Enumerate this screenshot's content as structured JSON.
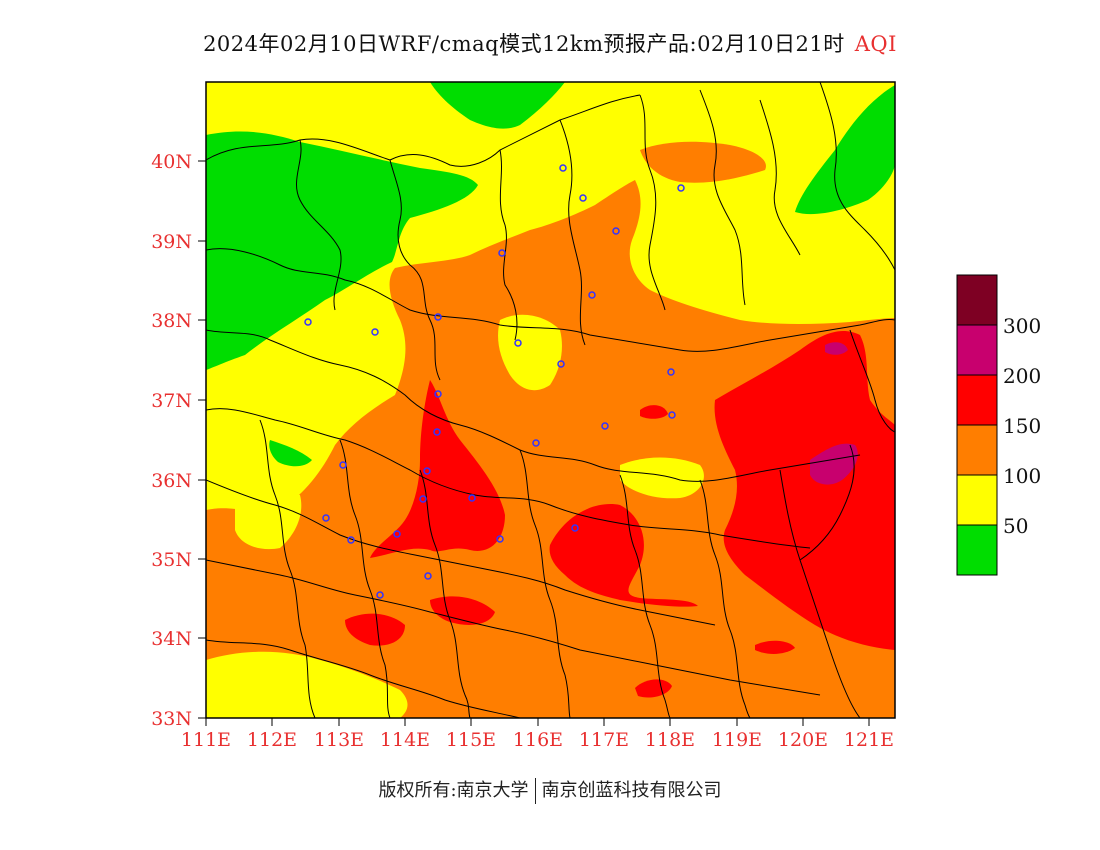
{
  "title": {
    "main": "2024年02月10日WRF/cmaq模式12km预报产品:02月10日21时",
    "variable": "AQI"
  },
  "map": {
    "lat_labels": [
      "40N",
      "39N",
      "38N",
      "37N",
      "36N",
      "35N",
      "34N",
      "33N"
    ],
    "lon_labels": [
      "111E",
      "112E",
      "113E",
      "114E",
      "115E",
      "116E",
      "117E",
      "118E",
      "119E",
      "120E",
      "121E"
    ],
    "field_colors": {
      "0-50": "#00dd00",
      "50-100": "#ffff00",
      "100-150": "#ff7e00",
      "150-200": "#ff0000",
      "200-300": "#c8006e",
      "300+": "#7e0023"
    }
  },
  "legend": {
    "labels": [
      "300",
      "200",
      "150",
      "100",
      "50"
    ],
    "colors": [
      "#7e0023",
      "#c8006e",
      "#ff0000",
      "#ff7e00",
      "#ffff00",
      "#00dd00"
    ]
  },
  "footer": {
    "left": "版权所有:南京大学",
    "right": "南京创蓝科技有限公司"
  }
}
